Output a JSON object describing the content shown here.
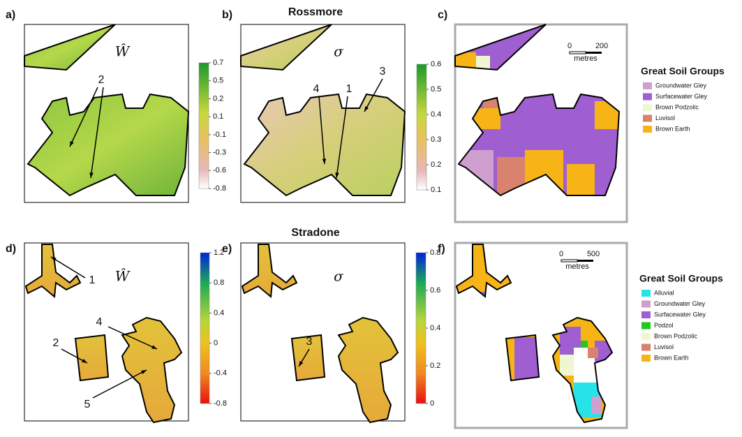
{
  "sections": [
    {
      "title": "Rossmore"
    },
    {
      "title": "Stradone"
    }
  ],
  "panels": [
    {
      "label": "a)",
      "symbol": "Ŵ",
      "colorbar_ticks": [
        "0.7",
        "0.5",
        "0.2",
        "0.1",
        "-0.1",
        "-0.3",
        "-0.6",
        "-0.8"
      ],
      "annotations": [
        "2"
      ]
    },
    {
      "label": "b)",
      "symbol": "σ",
      "colorbar_ticks": [
        "0.6",
        "0.5",
        "0.4",
        "0.3",
        "0.2",
        "0.1"
      ],
      "annotations": [
        "4",
        "1",
        "3"
      ]
    },
    {
      "label": "c)",
      "scale_bar": [
        "0",
        "200"
      ],
      "scale_unit": "metres",
      "legend": {
        "title": "Great Soil Groups",
        "items": [
          {
            "name": "Groundwater Gley",
            "color": "#cf9fcf"
          },
          {
            "name": "Surfacewater Gley",
            "color": "#a05fd0"
          },
          {
            "name": "Brown Podzolic",
            "color": "#eef7d0"
          },
          {
            "name": "Luvisol",
            "color": "#d9826e"
          },
          {
            "name": "Brown Earth",
            "color": "#f7b417"
          }
        ]
      }
    },
    {
      "label": "d)",
      "symbol": "Ŵ",
      "colorbar_ticks": [
        "1.2",
        "0.8",
        "0.4",
        "0",
        "-0.4",
        "-0.8"
      ],
      "annotations": [
        "1",
        "2",
        "4",
        "5"
      ]
    },
    {
      "label": "e)",
      "symbol": "σ",
      "colorbar_ticks": [
        "0.8",
        "0.6",
        "0.4",
        "0.2",
        "0"
      ],
      "annotations": [
        "3"
      ]
    },
    {
      "label": "f)",
      "scale_bar": [
        "0",
        "500"
      ],
      "scale_unit": "metres",
      "legend": {
        "title": "Great Soil Groups",
        "items": [
          {
            "name": "Alluvial",
            "color": "#27e3e8"
          },
          {
            "name": "Groundwater Gley",
            "color": "#cf9fcf"
          },
          {
            "name": "Surfacewater Gley",
            "color": "#a05fd0"
          },
          {
            "name": "Podzol",
            "color": "#22c71f"
          },
          {
            "name": "Brown Podzolic",
            "color": "#eef7d0"
          },
          {
            "name": "Luvisol",
            "color": "#d9826e"
          },
          {
            "name": "Brown Earth",
            "color": "#f7b417"
          }
        ]
      }
    }
  ]
}
